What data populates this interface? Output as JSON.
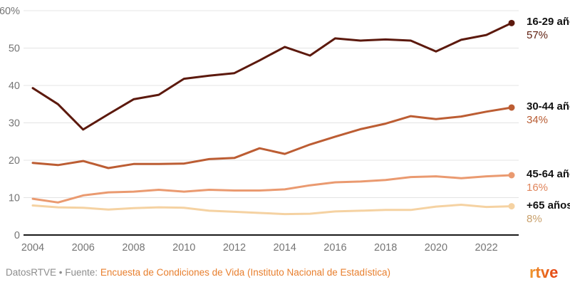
{
  "chart_data": {
    "type": "line",
    "title": "",
    "xlabel": "",
    "ylabel": "",
    "ylim": [
      0,
      60
    ],
    "x_range": [
      2004,
      2023
    ],
    "grid": true,
    "legend_position": "right-of-line-ends",
    "x": [
      2004,
      2005,
      2006,
      2007,
      2008,
      2009,
      2010,
      2011,
      2012,
      2013,
      2014,
      2015,
      2016,
      2017,
      2018,
      2019,
      2020,
      2021,
      2022,
      2023
    ],
    "yticks": [
      {
        "v": 60,
        "label": "60%"
      },
      {
        "v": 50,
        "label": "50"
      },
      {
        "v": 40,
        "label": "40"
      },
      {
        "v": 30,
        "label": "30"
      },
      {
        "v": 20,
        "label": "20"
      },
      {
        "v": 10,
        "label": "10"
      },
      {
        "v": 0,
        "label": "0"
      }
    ],
    "xticks": [
      {
        "v": 2004,
        "label": "2004"
      },
      {
        "v": 2006,
        "label": "2006"
      },
      {
        "v": 2008,
        "label": "2008"
      },
      {
        "v": 2010,
        "label": "2010"
      },
      {
        "v": 2012,
        "label": "2012"
      },
      {
        "v": 2014,
        "label": "2014"
      },
      {
        "v": 2016,
        "label": "2016"
      },
      {
        "v": 2018,
        "label": "2018"
      },
      {
        "v": 2020,
        "label": "2020"
      },
      {
        "v": 2022,
        "label": "2022"
      }
    ],
    "series": [
      {
        "name": "16-29 años",
        "value_label": "57%",
        "color": "#5c190d",
        "label_color": "#5e1e0e",
        "values": [
          39.3,
          35.0,
          28.2,
          32.3,
          36.3,
          37.5,
          41.8,
          42.6,
          43.3,
          46.7,
          50.3,
          48.0,
          52.6,
          52.0,
          52.3,
          52.0,
          49.1,
          52.2,
          53.5,
          56.7
        ]
      },
      {
        "name": "30-44 años",
        "value_label": "34%",
        "color": "#bc5d33",
        "label_color": "#b85c33",
        "values": [
          19.3,
          18.7,
          19.8,
          17.9,
          19.0,
          19.0,
          19.1,
          20.3,
          20.6,
          23.2,
          21.7,
          24.2,
          26.3,
          28.3,
          29.8,
          31.8,
          31.0,
          31.7,
          33.0,
          34.1
        ]
      },
      {
        "name": "45-64 años",
        "value_label": "16%",
        "color": "#ea9a70",
        "label_color": "#e0855c",
        "values": [
          9.7,
          8.7,
          10.6,
          11.4,
          11.6,
          12.1,
          11.6,
          12.1,
          11.9,
          11.9,
          12.2,
          13.3,
          14.1,
          14.3,
          14.7,
          15.5,
          15.7,
          15.2,
          15.7,
          16.0
        ]
      },
      {
        "name": "+65 años",
        "value_label": "8%",
        "color": "#f5d2a2",
        "label_color": "#c9a06b",
        "values": [
          7.9,
          7.4,
          7.3,
          6.8,
          7.2,
          7.4,
          7.3,
          6.5,
          6.2,
          5.9,
          5.6,
          5.7,
          6.3,
          6.5,
          6.7,
          6.7,
          7.6,
          8.1,
          7.5,
          7.7
        ]
      }
    ],
    "colors": {
      "grid": "#e4e4e4",
      "axis_line": "#1a1a1a",
      "tick_text": "#757575"
    }
  },
  "footer": {
    "credit": "DatosRTVE • Fuente:",
    "source_link": "Encuesta de Condiciones de Vida (Instituto Nacional de Estadística)",
    "logo_text": "rtve",
    "logo_gradient": [
      "#f09a2d",
      "#e33d11"
    ]
  }
}
